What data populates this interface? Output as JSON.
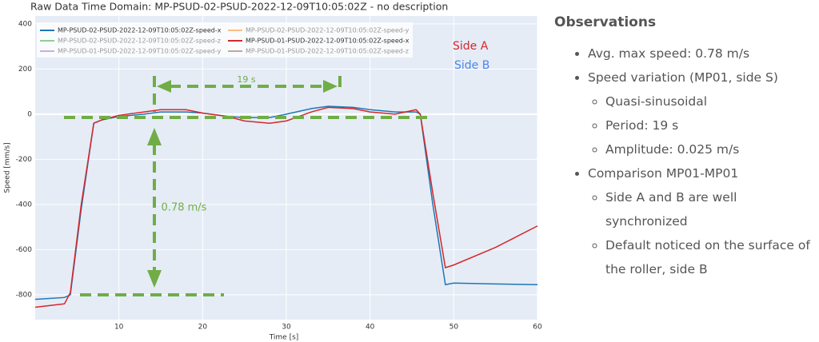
{
  "chart_data": {
    "type": "line",
    "title": "Raw Data Time Domain: MP-PSUD-02-PSUD-2022-12-09T10:05:02Z - no description",
    "x_label": "Time [s]",
    "y_label": "Speed [mm/s]",
    "x": [
      0,
      3.5,
      4.2,
      5.5,
      7,
      8,
      10,
      13,
      15,
      18,
      20,
      23,
      25,
      28,
      30,
      33,
      35,
      38,
      40,
      43,
      45.5,
      46,
      47.5,
      49,
      50,
      55,
      60
    ],
    "series": [
      {
        "name": "MP-PSUD-02-PSUD-2022-12-09T10:05:02Z-speed-x",
        "color": "#1f77b4",
        "visible": true,
        "values": [
          -820,
          -812,
          -800,
          -420,
          -40,
          -25,
          -10,
          0,
          10,
          10,
          5,
          -10,
          -15,
          -15,
          0,
          25,
          35,
          30,
          20,
          10,
          10,
          0,
          -400,
          -755,
          -748,
          -752,
          -755
        ]
      },
      {
        "name": "MP-PSUD-02-PSUD-2022-12-09T10:05:02Z-speed-y",
        "color": "#ff7f0e",
        "visible": false
      },
      {
        "name": "MP-PSUD-02-PSUD-2022-12-09T10:05:02Z-speed-z",
        "color": "#2ca02c",
        "visible": false
      },
      {
        "name": "MP-PSUD-01-PSUD-2022-12-09T10:05:02Z-speed-x",
        "color": "#d62728",
        "visible": true,
        "values": [
          -855,
          -840,
          -790,
          -400,
          -40,
          -25,
          -5,
          10,
          20,
          20,
          5,
          -10,
          -30,
          -40,
          -30,
          10,
          30,
          25,
          10,
          0,
          20,
          0,
          -350,
          -680,
          -668,
          -590,
          -495
        ]
      },
      {
        "name": "MP-PSUD-01-PSUD-2022-12-09T10:05:02Z-speed-y",
        "color": "#9467bd",
        "visible": false
      },
      {
        "name": "MP-PSUD-01-PSUD-2022-12-09T10:05:02Z-speed-z",
        "color": "#8c564b",
        "visible": false
      }
    ],
    "xlim": [
      0,
      60
    ],
    "xticks": [
      10,
      20,
      30,
      40,
      50,
      60
    ],
    "ylim": [
      -910,
      435
    ],
    "yticks": [
      -800,
      -600,
      -400,
      -200,
      0,
      200,
      400
    ],
    "grid": true,
    "annotations": {
      "period": "19 s",
      "amplitude": "0.78 m/s",
      "side_a": "Side A",
      "side_b": "Side B"
    }
  },
  "notes": {
    "title": "Observations",
    "items": [
      {
        "text": "Avg. max speed: 0.78 m/s",
        "children": []
      },
      {
        "text": "Speed variation (MP01, side S)",
        "children": [
          "Quasi-sinusoidal",
          "Period: 19 s",
          "Amplitude: 0.025 m/s"
        ]
      },
      {
        "text": "Comparison MP01-MP01",
        "children": [
          "Side A and B are well synchronized",
          "Default noticed on the surface of the roller, side B"
        ]
      }
    ]
  }
}
